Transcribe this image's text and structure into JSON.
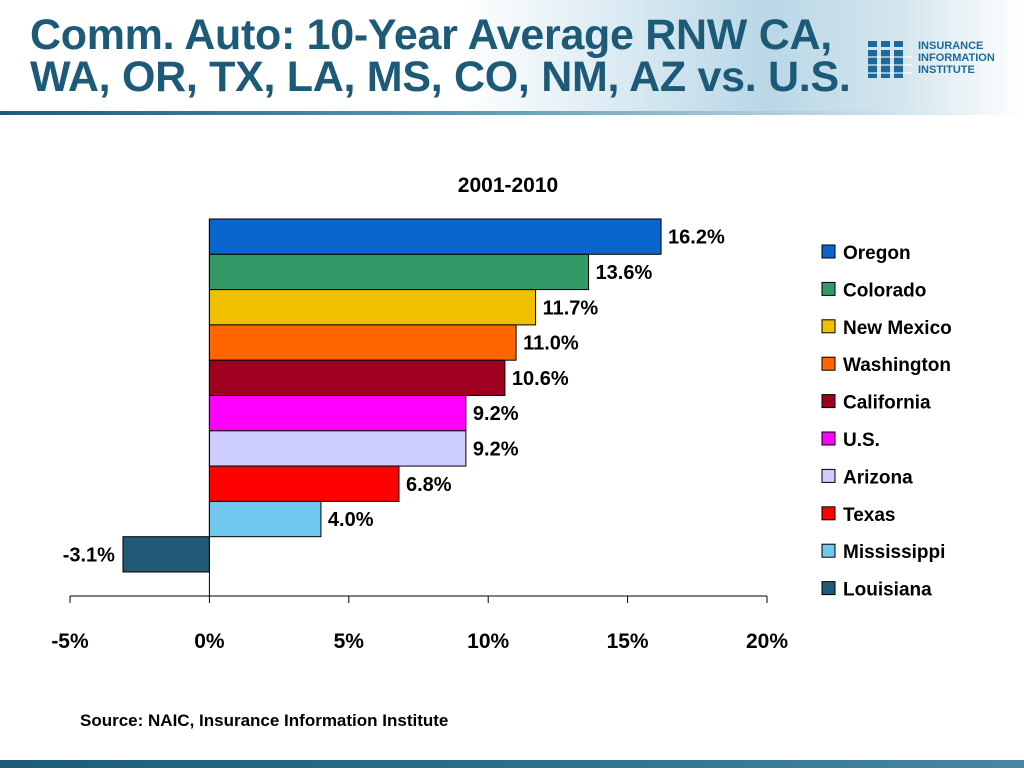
{
  "header": {
    "title": "Comm. Auto: 10-Year Average RNW CA, WA, OR, TX, LA, MS, CO, NM, AZ vs. U.S.",
    "logo": {
      "icon": "iii-logo-icon",
      "lines": [
        "INSURANCE",
        "INFORMATION",
        "INSTITUTE"
      ],
      "color": "#1c6a9a"
    }
  },
  "chart_data": {
    "type": "bar",
    "orientation": "horizontal",
    "title": "2001-2010",
    "categories": [
      "Oregon",
      "Colorado",
      "New Mexico",
      "Washington",
      "California",
      "U.S.",
      "Arizona",
      "Texas",
      "Mississippi",
      "Louisiana"
    ],
    "values": [
      16.2,
      13.6,
      11.7,
      11.0,
      10.6,
      9.2,
      9.2,
      6.8,
      4.0,
      -3.1
    ],
    "data_labels": [
      "16.2%",
      "13.6%",
      "11.7%",
      "11.0%",
      "10.6%",
      "9.2%",
      "9.2%",
      "6.8%",
      "4.0%",
      "-3.1%"
    ],
    "colors": [
      "#0a66cc",
      "#339966",
      "#eec000",
      "#ff6600",
      "#a00020",
      "#ff00ff",
      "#ccccff",
      "#ff0000",
      "#70c8ef",
      "#215a78"
    ],
    "xlim": [
      -5,
      20
    ],
    "xticks": [
      -5,
      0,
      5,
      10,
      15,
      20
    ],
    "xtick_labels": [
      "-5%",
      "0%",
      "5%",
      "10%",
      "15%",
      "20%"
    ],
    "legend_position": "right",
    "grid": false
  },
  "footer": {
    "source": "Source: NAIC, Insurance Information Institute"
  }
}
